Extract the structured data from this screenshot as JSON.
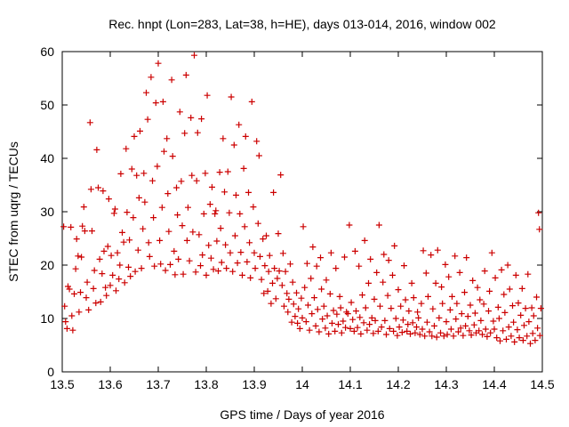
{
  "chart_data": {
    "type": "scatter",
    "title": "Rec. hnpt (Lon=283, Lat=38, h=HE), days 013-014, 2016, window 002",
    "xlabel": "GPS time / Days of year 2016",
    "ylabel": "STEC from uqrg / TECUs",
    "xlim": [
      13.5,
      14.5
    ],
    "ylim": [
      0,
      60
    ],
    "xticks": [
      "13.5",
      "13.6",
      "13.7",
      "13.8",
      "13.9",
      "14",
      "14.1",
      "14.2",
      "14.3",
      "14.4",
      "14.5"
    ],
    "yticks": [
      "0",
      "10",
      "20",
      "30",
      "40",
      "50",
      "60"
    ],
    "grid": false,
    "marker": "plus",
    "color": "#cc0000",
    "points": [
      [
        13.503,
        27.2
      ],
      [
        13.505,
        12.3
      ],
      [
        13.507,
        9.4
      ],
      [
        13.51,
        8.1
      ],
      [
        13.512,
        16.0
      ],
      [
        13.515,
        15.5
      ],
      [
        13.518,
        27.1
      ],
      [
        13.52,
        10.5
      ],
      [
        13.522,
        7.8
      ],
      [
        13.525,
        14.6
      ],
      [
        13.528,
        19.3
      ],
      [
        13.53,
        24.9
      ],
      [
        13.533,
        21.7
      ],
      [
        13.535,
        11.2
      ],
      [
        13.538,
        14.9
      ],
      [
        13.54,
        21.5
      ],
      [
        13.542,
        27.3
      ],
      [
        13.545,
        30.9
      ],
      [
        13.547,
        26.4
      ],
      [
        13.55,
        13.9
      ],
      [
        13.552,
        16.8
      ],
      [
        13.555,
        11.6
      ],
      [
        13.558,
        46.7
      ],
      [
        13.56,
        34.2
      ],
      [
        13.562,
        26.4
      ],
      [
        13.565,
        15.6
      ],
      [
        13.567,
        19.0
      ],
      [
        13.57,
        12.9
      ],
      [
        13.572,
        41.6
      ],
      [
        13.575,
        34.5
      ],
      [
        13.578,
        21.1
      ],
      [
        13.58,
        13.1
      ],
      [
        13.583,
        18.4
      ],
      [
        13.585,
        33.9
      ],
      [
        13.587,
        22.6
      ],
      [
        13.59,
        15.8
      ],
      [
        13.592,
        14.3
      ],
      [
        13.595,
        23.5
      ],
      [
        13.597,
        32.4
      ],
      [
        13.6,
        16.2
      ],
      [
        13.602,
        21.8
      ],
      [
        13.605,
        18.1
      ],
      [
        13.608,
        29.7
      ],
      [
        13.61,
        30.5
      ],
      [
        13.612,
        15.2
      ],
      [
        13.615,
        22.3
      ],
      [
        13.618,
        17.4
      ],
      [
        13.62,
        20.0
      ],
      [
        13.622,
        37.1
      ],
      [
        13.625,
        26.1
      ],
      [
        13.628,
        24.3
      ],
      [
        13.63,
        16.7
      ],
      [
        13.633,
        41.8
      ],
      [
        13.635,
        29.9
      ],
      [
        13.638,
        19.6
      ],
      [
        13.64,
        24.7
      ],
      [
        13.642,
        17.9
      ],
      [
        13.645,
        38.0
      ],
      [
        13.648,
        28.9
      ],
      [
        13.65,
        44.1
      ],
      [
        13.652,
        18.8
      ],
      [
        13.655,
        36.8
      ],
      [
        13.658,
        22.8
      ],
      [
        13.66,
        32.6
      ],
      [
        13.662,
        45.1
      ],
      [
        13.665,
        19.4
      ],
      [
        13.668,
        26.8
      ],
      [
        13.67,
        37.2
      ],
      [
        13.672,
        31.8
      ],
      [
        13.675,
        52.3
      ],
      [
        13.678,
        47.3
      ],
      [
        13.68,
        24.2
      ],
      [
        13.682,
        21.6
      ],
      [
        13.685,
        55.2
      ],
      [
        13.688,
        35.8
      ],
      [
        13.69,
        28.9
      ],
      [
        13.692,
        19.8
      ],
      [
        13.695,
        50.4
      ],
      [
        13.698,
        38.5
      ],
      [
        13.7,
        57.8
      ],
      [
        13.703,
        24.6
      ],
      [
        13.705,
        20.2
      ],
      [
        13.708,
        30.8
      ],
      [
        13.71,
        50.6
      ],
      [
        13.712,
        41.3
      ],
      [
        13.715,
        19.0
      ],
      [
        13.718,
        43.7
      ],
      [
        13.72,
        33.4
      ],
      [
        13.722,
        26.3
      ],
      [
        13.725,
        20.1
      ],
      [
        13.728,
        54.7
      ],
      [
        13.73,
        40.4
      ],
      [
        13.733,
        22.6
      ],
      [
        13.735,
        18.2
      ],
      [
        13.738,
        34.5
      ],
      [
        13.74,
        29.4
      ],
      [
        13.742,
        21.1
      ],
      [
        13.745,
        48.7
      ],
      [
        13.748,
        35.7
      ],
      [
        13.75,
        27.4
      ],
      [
        13.752,
        18.3
      ],
      [
        13.755,
        44.7
      ],
      [
        13.758,
        55.6
      ],
      [
        13.76,
        24.6
      ],
      [
        13.762,
        30.8
      ],
      [
        13.765,
        20.8
      ],
      [
        13.768,
        47.6
      ],
      [
        13.77,
        36.8
      ],
      [
        13.772,
        26.2
      ],
      [
        13.775,
        59.3
      ],
      [
        13.778,
        18.7
      ],
      [
        13.78,
        35.8
      ],
      [
        13.782,
        44.8
      ],
      [
        13.785,
        25.7
      ],
      [
        13.788,
        19.9
      ],
      [
        13.79,
        47.4
      ],
      [
        13.792,
        21.9
      ],
      [
        13.795,
        29.6
      ],
      [
        13.798,
        37.2
      ],
      [
        13.8,
        18.1
      ],
      [
        13.802,
        51.8
      ],
      [
        13.805,
        23.7
      ],
      [
        13.808,
        31.4
      ],
      [
        13.81,
        21.3
      ],
      [
        13.812,
        34.6
      ],
      [
        13.815,
        19.2
      ],
      [
        13.818,
        29.6
      ],
      [
        13.82,
        30.2
      ],
      [
        13.822,
        24.5
      ],
      [
        13.825,
        18.9
      ],
      [
        13.828,
        37.4
      ],
      [
        13.83,
        26.9
      ],
      [
        13.832,
        20.5
      ],
      [
        13.835,
        43.7
      ],
      [
        13.838,
        33.7
      ],
      [
        13.84,
        23.8
      ],
      [
        13.842,
        19.4
      ],
      [
        13.845,
        37.5
      ],
      [
        13.848,
        29.8
      ],
      [
        13.85,
        22.3
      ],
      [
        13.852,
        51.5
      ],
      [
        13.855,
        18.8
      ],
      [
        13.858,
        42.5
      ],
      [
        13.86,
        25.5
      ],
      [
        13.862,
        33.1
      ],
      [
        13.865,
        20.4
      ],
      [
        13.868,
        46.3
      ],
      [
        13.87,
        29.6
      ],
      [
        13.872,
        22.4
      ],
      [
        13.875,
        18.1
      ],
      [
        13.878,
        38.1
      ],
      [
        13.88,
        27.2
      ],
      [
        13.882,
        44.1
      ],
      [
        13.885,
        20.6
      ],
      [
        13.888,
        33.6
      ],
      [
        13.89,
        24.2
      ],
      [
        13.892,
        17.6
      ],
      [
        13.895,
        50.6
      ],
      [
        13.898,
        30.9
      ],
      [
        13.9,
        22.3
      ],
      [
        13.902,
        19.4
      ],
      [
        13.905,
        43.2
      ],
      [
        13.908,
        27.8
      ],
      [
        13.91,
        40.5
      ],
      [
        13.912,
        21.6
      ],
      [
        13.915,
        17.3
      ],
      [
        13.918,
        24.9
      ],
      [
        13.92,
        14.7
      ],
      [
        13.922,
        19.9
      ],
      [
        13.925,
        25.5
      ],
      [
        13.928,
        15.1
      ],
      [
        13.93,
        18.8
      ],
      [
        13.932,
        21.8
      ],
      [
        13.935,
        12.8
      ],
      [
        13.938,
        16.6
      ],
      [
        13.94,
        33.6
      ],
      [
        13.942,
        19.4
      ],
      [
        13.945,
        13.7
      ],
      [
        13.948,
        17.5
      ],
      [
        13.95,
        25.9
      ],
      [
        13.952,
        18.9
      ],
      [
        13.955,
        36.9
      ],
      [
        13.958,
        16.2
      ],
      [
        13.96,
        22.2
      ],
      [
        13.962,
        12.3
      ],
      [
        13.965,
        18.8
      ],
      [
        13.968,
        14.7
      ],
      [
        13.97,
        11.2
      ],
      [
        13.972,
        13.6
      ],
      [
        13.975,
        20.2
      ],
      [
        13.978,
        9.3
      ],
      [
        13.98,
        16.8
      ],
      [
        13.982,
        12.7
      ],
      [
        13.985,
        10.4
      ],
      [
        13.988,
        14.8
      ],
      [
        13.99,
        9.1
      ],
      [
        13.992,
        11.8
      ],
      [
        13.995,
        8.1
      ],
      [
        13.998,
        13.8
      ],
      [
        14.0,
        10.1
      ],
      [
        14.002,
        27.2
      ],
      [
        14.005,
        15.8
      ],
      [
        14.008,
        9.4
      ],
      [
        14.01,
        20.3
      ],
      [
        14.012,
        12.5
      ],
      [
        14.015,
        7.8
      ],
      [
        14.018,
        17.5
      ],
      [
        14.02,
        10.9
      ],
      [
        14.022,
        23.4
      ],
      [
        14.025,
        13.9
      ],
      [
        14.028,
        8.6
      ],
      [
        14.03,
        19.8
      ],
      [
        14.032,
        11.7
      ],
      [
        14.035,
        7.5
      ],
      [
        14.038,
        21.4
      ],
      [
        14.04,
        15.5
      ],
      [
        14.042,
        9.9
      ],
      [
        14.045,
        12.3
      ],
      [
        14.048,
        8.2
      ],
      [
        14.05,
        17.2
      ],
      [
        14.052,
        10.5
      ],
      [
        14.055,
        7.1
      ],
      [
        14.058,
        14.6
      ],
      [
        14.06,
        22.3
      ],
      [
        14.062,
        9.1
      ],
      [
        14.065,
        11.5
      ],
      [
        14.068,
        7.6
      ],
      [
        14.07,
        19.4
      ],
      [
        14.072,
        10.8
      ],
      [
        14.075,
        8.9
      ],
      [
        14.078,
        14.1
      ],
      [
        14.08,
        12.0
      ],
      [
        14.082,
        7.3
      ],
      [
        14.085,
        9.5
      ],
      [
        14.088,
        21.5
      ],
      [
        14.09,
        8.3
      ],
      [
        14.092,
        11.2
      ],
      [
        14.095,
        10.9
      ],
      [
        14.098,
        27.5
      ],
      [
        14.1,
        8.1
      ],
      [
        14.102,
        13.0
      ],
      [
        14.105,
        9.8
      ],
      [
        14.108,
        7.6
      ],
      [
        14.11,
        22.6
      ],
      [
        14.112,
        11.4
      ],
      [
        14.115,
        8.3
      ],
      [
        14.118,
        19.8
      ],
      [
        14.12,
        10.2
      ],
      [
        14.122,
        7.1
      ],
      [
        14.125,
        14.4
      ],
      [
        14.128,
        9.2
      ],
      [
        14.13,
        24.6
      ],
      [
        14.132,
        12.0
      ],
      [
        14.135,
        7.8
      ],
      [
        14.138,
        16.6
      ],
      [
        14.14,
        8.9
      ],
      [
        14.142,
        21.1
      ],
      [
        14.145,
        10.1
      ],
      [
        14.148,
        7.2
      ],
      [
        14.15,
        13.6
      ],
      [
        14.152,
        9.6
      ],
      [
        14.155,
        18.6
      ],
      [
        14.158,
        7.6
      ],
      [
        14.16,
        27.5
      ],
      [
        14.162,
        12.3
      ],
      [
        14.165,
        8.4
      ],
      [
        14.168,
        16.8
      ],
      [
        14.17,
        22.0
      ],
      [
        14.172,
        9.6
      ],
      [
        14.175,
        7.0
      ],
      [
        14.178,
        14.3
      ],
      [
        14.18,
        20.9
      ],
      [
        14.182,
        8.1
      ],
      [
        14.185,
        11.9
      ],
      [
        14.188,
        18.1
      ],
      [
        14.19,
        7.6
      ],
      [
        14.192,
        23.6
      ],
      [
        14.195,
        10.0
      ],
      [
        14.198,
        6.8
      ],
      [
        14.2,
        15.4
      ],
      [
        14.202,
        8.4
      ],
      [
        14.205,
        12.3
      ],
      [
        14.208,
        7.4
      ],
      [
        14.21,
        9.7
      ],
      [
        14.212,
        19.9
      ],
      [
        14.215,
        13.5
      ],
      [
        14.218,
        7.6
      ],
      [
        14.22,
        8.9
      ],
      [
        14.222,
        11.4
      ],
      [
        14.225,
        7.1
      ],
      [
        14.228,
        16.6
      ],
      [
        14.23,
        9.2
      ],
      [
        14.232,
        13.9
      ],
      [
        14.235,
        7.3
      ],
      [
        14.238,
        8.4
      ],
      [
        14.24,
        11.2
      ],
      [
        14.242,
        10.1
      ],
      [
        14.245,
        7.0
      ],
      [
        14.248,
        12.8
      ],
      [
        14.25,
        8.0
      ],
      [
        14.252,
        22.7
      ],
      [
        14.255,
        6.7
      ],
      [
        14.258,
        18.5
      ],
      [
        14.26,
        9.3
      ],
      [
        14.262,
        14.1
      ],
      [
        14.265,
        7.5
      ],
      [
        14.268,
        21.9
      ],
      [
        14.27,
        6.7
      ],
      [
        14.272,
        11.8
      ],
      [
        14.275,
        8.6
      ],
      [
        14.278,
        16.6
      ],
      [
        14.28,
        6.5
      ],
      [
        14.282,
        22.8
      ],
      [
        14.285,
        10.1
      ],
      [
        14.288,
        7.3
      ],
      [
        14.29,
        15.9
      ],
      [
        14.292,
        12.8
      ],
      [
        14.295,
        6.7
      ],
      [
        14.298,
        20.1
      ],
      [
        14.3,
        9.4
      ],
      [
        14.302,
        7.0
      ],
      [
        14.305,
        17.8
      ],
      [
        14.308,
        11.6
      ],
      [
        14.31,
        8.0
      ],
      [
        14.312,
        14.1
      ],
      [
        14.315,
        6.7
      ],
      [
        14.318,
        21.7
      ],
      [
        14.32,
        9.9
      ],
      [
        14.322,
        12.8
      ],
      [
        14.325,
        7.5
      ],
      [
        14.328,
        18.6
      ],
      [
        14.33,
        8.2
      ],
      [
        14.332,
        10.9
      ],
      [
        14.335,
        6.8
      ],
      [
        14.338,
        14.9
      ],
      [
        14.34,
        8.6
      ],
      [
        14.342,
        21.4
      ],
      [
        14.345,
        10.4
      ],
      [
        14.348,
        7.7
      ],
      [
        14.35,
        12.5
      ],
      [
        14.352,
        6.9
      ],
      [
        14.355,
        17.1
      ],
      [
        14.358,
        8.8
      ],
      [
        14.36,
        11.0
      ],
      [
        14.362,
        7.3
      ],
      [
        14.365,
        15.8
      ],
      [
        14.368,
        7.7
      ],
      [
        14.37,
        13.5
      ],
      [
        14.372,
        9.6
      ],
      [
        14.375,
        7.0
      ],
      [
        14.378,
        12.7
      ],
      [
        14.38,
        18.9
      ],
      [
        14.382,
        8.0
      ],
      [
        14.385,
        6.6
      ],
      [
        14.388,
        11.4
      ],
      [
        14.39,
        15.1
      ],
      [
        14.392,
        7.3
      ],
      [
        14.395,
        22.3
      ],
      [
        14.398,
        9.5
      ],
      [
        14.4,
        8.0
      ],
      [
        14.402,
        17.6
      ],
      [
        14.405,
        6.4
      ],
      [
        14.408,
        12.1
      ],
      [
        14.41,
        10.0
      ],
      [
        14.412,
        5.8
      ],
      [
        14.415,
        19.1
      ],
      [
        14.418,
        7.7
      ],
      [
        14.42,
        14.5
      ],
      [
        14.422,
        11.1
      ],
      [
        14.425,
        6.1
      ],
      [
        14.428,
        20.0
      ],
      [
        14.43,
        8.4
      ],
      [
        14.432,
        15.5
      ],
      [
        14.435,
        6.7
      ],
      [
        14.438,
        12.4
      ],
      [
        14.44,
        9.3
      ],
      [
        14.442,
        5.6
      ],
      [
        14.445,
        18.1
      ],
      [
        14.448,
        7.9
      ],
      [
        14.45,
        12.9
      ],
      [
        14.452,
        6.4
      ],
      [
        14.455,
        10.6
      ],
      [
        14.458,
        15.6
      ],
      [
        14.46,
        5.9
      ],
      [
        14.462,
        8.7
      ],
      [
        14.465,
        11.9
      ],
      [
        14.468,
        6.7
      ],
      [
        14.47,
        18.3
      ],
      [
        14.472,
        9.4
      ],
      [
        14.475,
        5.3
      ],
      [
        14.478,
        12.0
      ],
      [
        14.48,
        7.2
      ],
      [
        14.482,
        10.5
      ],
      [
        14.485,
        5.9
      ],
      [
        14.488,
        14.0
      ],
      [
        14.49,
        8.2
      ],
      [
        14.492,
        29.8
      ],
      [
        14.494,
        26.7
      ],
      [
        14.495,
        6.8
      ],
      [
        14.497,
        11.9
      ]
    ]
  }
}
